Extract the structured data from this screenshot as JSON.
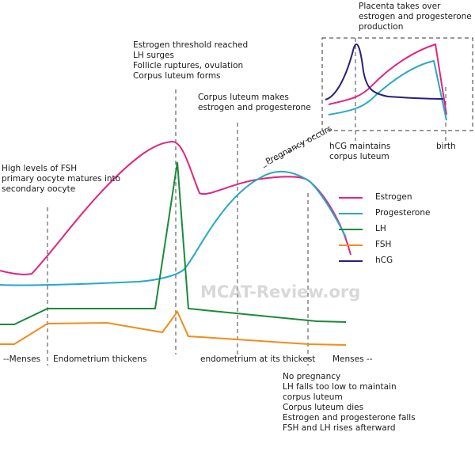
{
  "annotations": {
    "fsh_high": [
      "High levels of FSH",
      "primary oocyte matures into",
      "secondary oocyte"
    ],
    "estrogen_threshold": [
      "Estrogen threshold reached",
      "LH surges",
      "Follicle ruptures, ovulation",
      "Corpus luteum forms"
    ],
    "corpus_luteum": [
      "Corpus luteum makes",
      "estrogen and progesterone"
    ],
    "placenta": [
      "Placenta takes over",
      "estrogen and progesterone",
      "production"
    ],
    "hcg": [
      "hCG maintains",
      "corpus luteum"
    ],
    "birth": "birth",
    "pregnancy_occurs": "Pregnancy occurs",
    "no_pregnancy": [
      "No pregnancy",
      "LH falls too low to maintain",
      "corpus luteum",
      "Corpus luteum dies",
      "Estrogen and progesterone falls",
      "FSH and LH rises afterward"
    ]
  },
  "phases": {
    "menses_start": "--Menses",
    "endometrium_thickens": "Endometrium thickens",
    "endometrium_thickest": "endometrium at its thickest",
    "menses_end": "Menses --"
  },
  "watermark": "MCAT-Review.org",
  "legend": [
    {
      "label": "Estrogen",
      "color": "#e0257f"
    },
    {
      "label": "Progesterone",
      "color": "#27a8c8"
    },
    {
      "label": "LH",
      "color": "#1b8a3a"
    },
    {
      "label": "FSH",
      "color": "#f28c1c"
    },
    {
      "label": "hCG",
      "color": "#2b1f7a"
    }
  ]
}
